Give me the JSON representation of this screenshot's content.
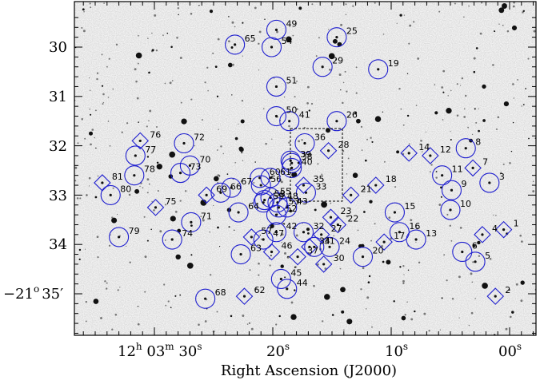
{
  "axes": {
    "xlabel": "Right Ascension (J2000)",
    "x_ticks": [
      {
        "main": "12",
        "sup1": "h",
        "mid": " 03",
        "sup2": "m",
        "tail": " 30",
        "sup3": "s"
      },
      {
        "main": "20",
        "sup1": "s"
      },
      {
        "main": "10",
        "sup1": "s"
      },
      {
        "main": "00",
        "sup1": "s"
      }
    ],
    "y_ticks": [
      {
        "value": 30,
        "label": "30"
      },
      {
        "value": 31,
        "label": "31"
      },
      {
        "value": 32,
        "label": "32"
      },
      {
        "value": 33,
        "label": "33"
      },
      {
        "value": 34,
        "label": "34"
      },
      {
        "value": 35,
        "label": "35",
        "prefix": "−21",
        "prefix_sup": "o",
        "suffix": "′"
      }
    ]
  },
  "markers": [
    {
      "id": "1",
      "shape": "diamond",
      "ra": 0.5,
      "dec": 33.7
    },
    {
      "id": "2",
      "shape": "diamond",
      "ra": 1.2,
      "dec": 35.05
    },
    {
      "id": "3",
      "shape": "circle",
      "ra": 1.7,
      "dec": 32.75
    },
    {
      "id": "4",
      "shape": "diamond",
      "ra": 2.3,
      "dec": 33.8
    },
    {
      "id": "5",
      "shape": "circle",
      "ra": 2.9,
      "dec": 34.35
    },
    {
      "id": "6",
      "shape": "circle",
      "ra": 4.0,
      "dec": 34.15
    },
    {
      "id": "7",
      "shape": "diamond",
      "ra": 3.1,
      "dec": 32.45
    },
    {
      "id": "8",
      "shape": "circle",
      "ra": 3.7,
      "dec": 32.05
    },
    {
      "id": "9",
      "shape": "circle",
      "ra": 4.9,
      "dec": 32.9
    },
    {
      "id": "10",
      "shape": "circle",
      "ra": 5.0,
      "dec": 33.3
    },
    {
      "id": "11",
      "shape": "circle",
      "ra": 5.7,
      "dec": 32.6
    },
    {
      "id": "12",
      "shape": "diamond",
      "ra": 6.7,
      "dec": 32.2
    },
    {
      "id": "13",
      "shape": "circle",
      "ra": 7.9,
      "dec": 33.9
    },
    {
      "id": "14",
      "shape": "diamond",
      "ra": 8.5,
      "dec": 32.15
    },
    {
      "id": "15",
      "shape": "circle",
      "ra": 9.7,
      "dec": 33.35
    },
    {
      "id": "16",
      "shape": "circle",
      "ra": 9.3,
      "dec": 33.75
    },
    {
      "id": "17",
      "shape": "diamond",
      "ra": 10.6,
      "dec": 33.95
    },
    {
      "id": "18",
      "shape": "diamond",
      "ra": 11.3,
      "dec": 32.8
    },
    {
      "id": "19",
      "shape": "circle",
      "ra": 11.1,
      "dec": 30.45
    },
    {
      "id": "20",
      "shape": "circle",
      "ra": 12.4,
      "dec": 34.25
    },
    {
      "id": "21",
      "shape": "diamond",
      "ra": 13.4,
      "dec": 33.0
    },
    {
      "id": "22",
      "shape": "diamond",
      "ra": 14.5,
      "dec": 33.6
    },
    {
      "id": "23",
      "shape": "diamond",
      "ra": 15.1,
      "dec": 33.45
    },
    {
      "id": "24",
      "shape": "circle",
      "ra": 15.2,
      "dec": 34.05
    },
    {
      "id": "25",
      "shape": "circle",
      "ra": 14.6,
      "dec": 29.8
    },
    {
      "id": "26",
      "shape": "circle",
      "ra": 14.6,
      "dec": 31.5
    },
    {
      "id": "27",
      "shape": "diamond",
      "ra": 15.9,
      "dec": 33.8
    },
    {
      "id": "28",
      "shape": "diamond",
      "ra": 15.3,
      "dec": 32.1
    },
    {
      "id": "29",
      "shape": "circle",
      "ra": 15.8,
      "dec": 30.4
    },
    {
      "id": "30",
      "shape": "diamond",
      "ra": 15.7,
      "dec": 34.4
    },
    {
      "id": "31",
      "shape": "circle",
      "ra": 16.5,
      "dec": 34.05
    },
    {
      "id": "32",
      "shape": "circle",
      "ra": 17.4,
      "dec": 33.75
    },
    {
      "id": "33",
      "shape": "circle",
      "ra": 17.2,
      "dec": 32.95
    },
    {
      "id": "34",
      "shape": "diamond",
      "ra": 16.9,
      "dec": 34.05
    },
    {
      "id": "35",
      "shape": "diamond",
      "ra": 17.4,
      "dec": 32.8
    },
    {
      "id": "36",
      "shape": "circle",
      "ra": 17.3,
      "dec": 31.95
    },
    {
      "id": "37",
      "shape": "diamond",
      "ra": 17.9,
      "dec": 34.25
    },
    {
      "id": "38",
      "shape": "circle",
      "ra": 18.4,
      "dec": 32.35
    },
    {
      "id": "39",
      "shape": "circle",
      "ra": 18.5,
      "dec": 32.3
    },
    {
      "id": "40",
      "shape": "circle",
      "ra": 18.4,
      "dec": 32.45
    },
    {
      "id": "41",
      "shape": "circle",
      "ra": 18.6,
      "dec": 31.5
    },
    {
      "id": "42",
      "shape": "circle",
      "ra": 19.7,
      "dec": 33.75
    },
    {
      "id": "43",
      "shape": "circle",
      "ra": 18.8,
      "dec": 33.25
    },
    {
      "id": "44",
      "shape": "circle",
      "ra": 18.8,
      "dec": 34.9
    },
    {
      "id": "45",
      "shape": "circle",
      "ra": 19.3,
      "dec": 34.7
    },
    {
      "id": "46",
      "shape": "diamond",
      "ra": 20.1,
      "dec": 34.15
    },
    {
      "id": "47",
      "shape": "circle",
      "ra": 20.8,
      "dec": 33.9
    },
    {
      "id": "48",
      "shape": "circle",
      "ra": 19.6,
      "dec": 33.15
    },
    {
      "id": "49",
      "shape": "circle",
      "ra": 19.7,
      "dec": 29.65
    },
    {
      "id": "50",
      "shape": "circle",
      "ra": 19.7,
      "dec": 31.4
    },
    {
      "id": "51",
      "shape": "circle",
      "ra": 19.7,
      "dec": 30.8
    },
    {
      "id": "52",
      "shape": "circle",
      "ra": 19.7,
      "dec": 33.4
    },
    {
      "id": "53",
      "shape": "circle",
      "ra": 19.5,
      "dec": 33.25
    },
    {
      "id": "54",
      "shape": "circle",
      "ra": 20.1,
      "dec": 30.0
    },
    {
      "id": "55",
      "shape": "circle",
      "ra": 20.2,
      "dec": 33.05
    },
    {
      "id": "56",
      "shape": "circle",
      "ra": 21.0,
      "dec": 32.8
    },
    {
      "id": "57",
      "shape": "diamond",
      "ra": 21.8,
      "dec": 33.85
    },
    {
      "id": "58",
      "shape": "circle",
      "ra": 20.7,
      "dec": 33.1
    },
    {
      "id": "59",
      "shape": "circle",
      "ra": 20.8,
      "dec": 33.15
    },
    {
      "id": "60",
      "shape": "circle",
      "ra": 21.1,
      "dec": 32.65
    },
    {
      "id": "61",
      "shape": "circle",
      "ra": 20.2,
      "dec": 32.65
    },
    {
      "id": "62",
      "shape": "diamond",
      "ra": 22.4,
      "dec": 35.05
    },
    {
      "id": "63",
      "shape": "circle",
      "ra": 22.7,
      "dec": 34.2
    },
    {
      "id": "64",
      "shape": "circle",
      "ra": 22.9,
      "dec": 33.35
    },
    {
      "id": "65",
      "shape": "circle",
      "ra": 23.2,
      "dec": 29.95
    },
    {
      "id": "66",
      "shape": "circle",
      "ra": 24.4,
      "dec": 32.95
    },
    {
      "id": "67",
      "shape": "circle",
      "ra": 23.5,
      "dec": 32.85
    },
    {
      "id": "68",
      "shape": "circle",
      "ra": 25.7,
      "dec": 35.1
    },
    {
      "id": "69",
      "shape": "diamond",
      "ra": 25.6,
      "dec": 33.0
    },
    {
      "id": "70",
      "shape": "circle",
      "ra": 27.0,
      "dec": 32.4
    },
    {
      "id": "71",
      "shape": "circle",
      "ra": 26.9,
      "dec": 33.55
    },
    {
      "id": "72",
      "shape": "circle",
      "ra": 27.5,
      "dec": 31.95
    },
    {
      "id": "73",
      "shape": "circle",
      "ra": 27.8,
      "dec": 32.55
    },
    {
      "id": "74",
      "shape": "circle",
      "ra": 28.5,
      "dec": 33.9
    },
    {
      "id": "75",
      "shape": "diamond",
      "ra": 29.9,
      "dec": 33.25
    },
    {
      "id": "76",
      "shape": "diamond",
      "ra": 31.2,
      "dec": 31.9
    },
    {
      "id": "77",
      "shape": "circle",
      "ra": 31.6,
      "dec": 32.2
    },
    {
      "id": "78",
      "shape": "circle",
      "ra": 31.7,
      "dec": 32.6
    },
    {
      "id": "79",
      "shape": "circle",
      "ra": 33.0,
      "dec": 33.85
    },
    {
      "id": "80",
      "shape": "circle",
      "ra": 33.7,
      "dec": 33.0
    },
    {
      "id": "81",
      "shape": "diamond",
      "ra": 34.4,
      "dec": 32.75
    }
  ],
  "colors": {
    "marker": "#1f1fcf",
    "frame": "#000000",
    "box": "#000000"
  }
}
